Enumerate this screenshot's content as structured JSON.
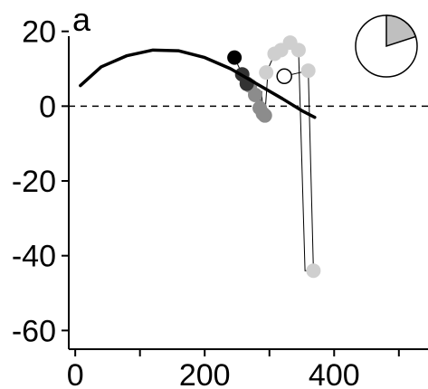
{
  "panel_label": "a",
  "chart_data": {
    "type": "scatter",
    "title": "",
    "xlabel": "",
    "ylabel": "",
    "xlim": [
      -10,
      545
    ],
    "ylim": [
      -65,
      25
    ],
    "x_ticks": [
      0,
      200,
      400
    ],
    "x_minor_ticks": [
      100,
      300,
      500
    ],
    "y_ticks": [
      -60,
      -40,
      -20,
      0,
      20
    ],
    "reference_line": {
      "y": 0,
      "style": "dashed"
    },
    "grid": false,
    "fit_curve": {
      "style": "thick-black",
      "points": [
        [
          8,
          5.5
        ],
        [
          40,
          10.5
        ],
        [
          80,
          13.5
        ],
        [
          120,
          15
        ],
        [
          160,
          14.8
        ],
        [
          200,
          13
        ],
        [
          240,
          10
        ],
        [
          280,
          6
        ],
        [
          320,
          2
        ],
        [
          350,
          -1.2
        ],
        [
          370,
          -3
        ]
      ]
    },
    "series": [
      {
        "style": "filled-circles-light",
        "color": "#cfcfcf",
        "points": [
          [
            295,
            9
          ],
          [
            308,
            14
          ],
          [
            318,
            15
          ],
          [
            332,
            17
          ],
          [
            345,
            15
          ],
          [
            360,
            9.5
          ],
          [
            368,
            -44
          ]
        ]
      },
      {
        "style": "filled-circles-mid",
        "color": "#8c8c8c",
        "points": [
          [
            270,
            5.5
          ],
          [
            278,
            3
          ],
          [
            285,
            -0.5
          ],
          [
            290,
            -2
          ],
          [
            293,
            -2.5
          ]
        ]
      },
      {
        "style": "filled-circles-dark",
        "color": "#333333",
        "points": [
          [
            258,
            8.5
          ],
          [
            265,
            6
          ]
        ]
      },
      {
        "style": "filled-circles-black",
        "color": "#000000",
        "points": [
          [
            246,
            13
          ]
        ]
      },
      {
        "style": "open-circle",
        "color": "#ffffff",
        "points": [
          [
            323,
            8
          ]
        ]
      }
    ],
    "trajectory": [
      [
        246,
        13
      ],
      [
        258,
        8.5
      ],
      [
        265,
        6
      ],
      [
        270,
        5.5
      ],
      [
        278,
        3
      ],
      [
        285,
        -0.5
      ],
      [
        288,
        4
      ],
      [
        290,
        -2
      ],
      [
        293,
        -2.5
      ],
      [
        298,
        10
      ],
      [
        308,
        14
      ],
      [
        318,
        15
      ],
      [
        332,
        17
      ],
      [
        345,
        15
      ],
      [
        355,
        -44
      ],
      [
        368,
        -44
      ],
      [
        360,
        9.5
      ],
      [
        323,
        8
      ]
    ],
    "inset_pie": {
      "shaded_fraction": 0.2,
      "shaded_color": "#bfbfbf"
    }
  }
}
